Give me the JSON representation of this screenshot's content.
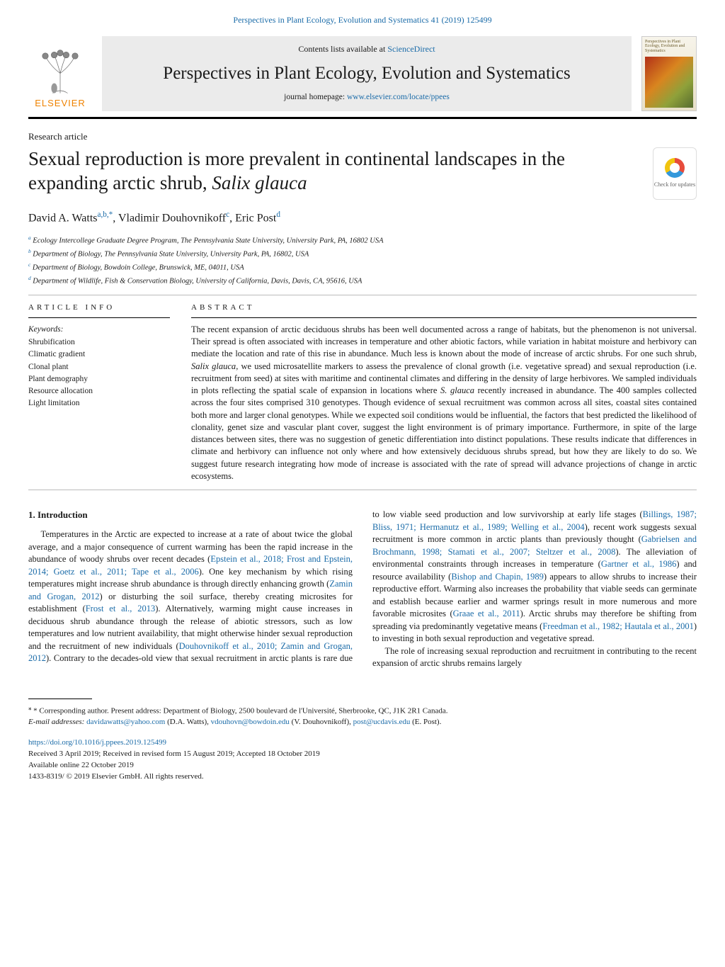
{
  "citation": "Perspectives in Plant Ecology, Evolution and Systematics 41 (2019) 125499",
  "masthead": {
    "contents_prefix": "Contents lists available at ",
    "contents_link": "ScienceDirect",
    "journal_title": "Perspectives in Plant Ecology, Evolution and Systematics",
    "homepage_prefix": "journal homepage: ",
    "homepage_url": "www.elsevier.com/locate/ppees",
    "publisher": "ELSEVIER",
    "cover_caption": "Perspectives in Plant Ecology, Evolution and Systematics"
  },
  "article_type": "Research article",
  "title_plain": "Sexual reproduction is more prevalent in continental landscapes in the expanding arctic shrub, ",
  "title_species": "Salix glauca",
  "check_updates_label": "Check for updates",
  "authors_html": "David A. Watts<sup>a,b,*</sup>, Vladimir Douhovnikoff<sup>c</sup>, Eric Post<sup>d</sup>",
  "affiliations": [
    {
      "sup": "a",
      "text": "Ecology Intercollege Graduate Degree Program, The Pennsylvania State University, University Park, PA, 16802 USA"
    },
    {
      "sup": "b",
      "text": "Department of Biology, The Pennsylvania State University, University Park, PA, 16802, USA"
    },
    {
      "sup": "c",
      "text": "Department of Biology, Bowdoin College, Brunswick, ME, 04011, USA"
    },
    {
      "sup": "d",
      "text": "Department of Wildlife, Fish & Conservation Biology, University of California, Davis, Davis, CA, 95616, USA"
    }
  ],
  "article_info_label": "ARTICLE INFO",
  "abstract_label": "ABSTRACT",
  "keywords_label": "Keywords:",
  "keywords": [
    "Shrubification",
    "Climatic gradient",
    "Clonal plant",
    "Plant demography",
    "Resource allocation",
    "Light limitation"
  ],
  "abstract": "The recent expansion of arctic deciduous shrubs has been well documented across a range of habitats, but the phenomenon is not universal. Their spread is often associated with increases in temperature and other abiotic factors, while variation in habitat moisture and herbivory can mediate the location and rate of this rise in abundance. Much less is known about the mode of increase of arctic shrubs. For one such shrub, Salix glauca, we used microsatellite markers to assess the prevalence of clonal growth (i.e. vegetative spread) and sexual reproduction (i.e. recruitment from seed) at sites with maritime and continental climates and differing in the density of large herbivores. We sampled individuals in plots reflecting the spatial scale of expansion in locations where S. glauca recently increased in abundance. The 400 samples collected across the four sites comprised 310 genotypes. Though evidence of sexual recruitment was common across all sites, coastal sites contained both more and larger clonal genotypes. While we expected soil conditions would be influential, the factors that best predicted the likelihood of clonality, genet size and vascular plant cover, suggest the light environment is of primary importance. Furthermore, in spite of the large distances between sites, there was no suggestion of genetic differentiation into distinct populations. These results indicate that differences in climate and herbivory can influence not only where and how extensively deciduous shrubs spread, but how they are likely to do so. We suggest future research integrating how mode of increase is associated with the rate of spread will advance projections of change in arctic ecosystems.",
  "intro_heading": "1. Introduction",
  "body_p1_pre": "Temperatures in the Arctic are expected to increase at a rate of about twice the global average, and a major consequence of current warming has been the rapid increase in the abundance of woody shrubs over recent decades (",
  "body_p1_refs1": "Epstein et al., 2018; Frost and Epstein, 2014; Goetz et al., 2011; Tape et al., 2006",
  "body_p1_mid1": "). One key mechanism by which rising temperatures might increase shrub abundance is through directly enhancing growth (",
  "body_p1_ref2": "Zamin and Grogan, 2012",
  "body_p1_mid2": ") or disturbing the soil surface, thereby creating microsites for establishment (",
  "body_p1_ref3": "Frost et al., 2013",
  "body_p1_mid3": "). Alternatively, warming might cause increases in deciduous shrub abundance through the release of abiotic stressors, such as low temperatures and low nutrient availability, that might otherwise hinder sexual reproduction and the recruitment of new individuals (",
  "body_p1_ref4": "Douhovnikoff et al., 2010; Zamin and Grogan, 2012",
  "body_p1_mid4": "). Contrary to the decades-old view that sexual recruitment in arctic plants is rare due to low viable seed production and low survivorship at early life stages (",
  "body_p1_ref5": "Billings, 1987; Bliss, 1971; Hermanutz et al., 1989; Welling et al., 2004",
  "body_p1_mid5": "), recent work suggests sexual recruitment is more common in arctic plants than previously thought (",
  "body_p1_ref6": "Gabrielsen and Brochmann, 1998; Stamati et al., 2007; Steltzer et al., 2008",
  "body_p1_mid6": "). The alleviation of environmental constraints through increases in temperature (",
  "body_p1_ref7": "Gartner et al., 1986",
  "body_p1_mid7": ") and resource availability (",
  "body_p1_ref8": "Bishop and Chapin, 1989",
  "body_p1_mid8": ") appears to allow shrubs to increase their reproductive effort. Warming also increases the probability that viable seeds can germinate and establish because earlier and warmer springs result in more numerous and more favorable microsites (",
  "body_p1_ref9": "Graae et al., 2011",
  "body_p1_mid9": "). Arctic shrubs may therefore be shifting from spreading via predominantly vegetative means (",
  "body_p1_ref10": "Freedman et al., 1982; Hautala et al., 2001",
  "body_p1_end": ") to investing in both sexual reproduction and vegetative spread.",
  "body_p2": "The role of increasing sexual reproduction and recruitment in contributing to the recent expansion of arctic shrubs remains largely",
  "corr_line": "* Corresponding author. Present address: Department of Biology, 2500 boulevard de l'Université, Sherbrooke, QC, J1K 2R1 Canada.",
  "email_prefix": "E-mail addresses: ",
  "emails": [
    {
      "addr": "davidawatts@yahoo.com",
      "who": " (D.A. Watts), "
    },
    {
      "addr": "vdouhovn@bowdoin.edu",
      "who": " (V. Douhovnikoff), "
    },
    {
      "addr": "post@ucdavis.edu",
      "who": " (E. Post)."
    }
  ],
  "doi": "https://doi.org/10.1016/j.ppees.2019.125499",
  "history": "Received 3 April 2019; Received in revised form 15 August 2019; Accepted 18 October 2019",
  "online": "Available online 22 October 2019",
  "issn_copyright": "1433-8319/ © 2019 Elsevier GmbH. All rights reserved."
}
